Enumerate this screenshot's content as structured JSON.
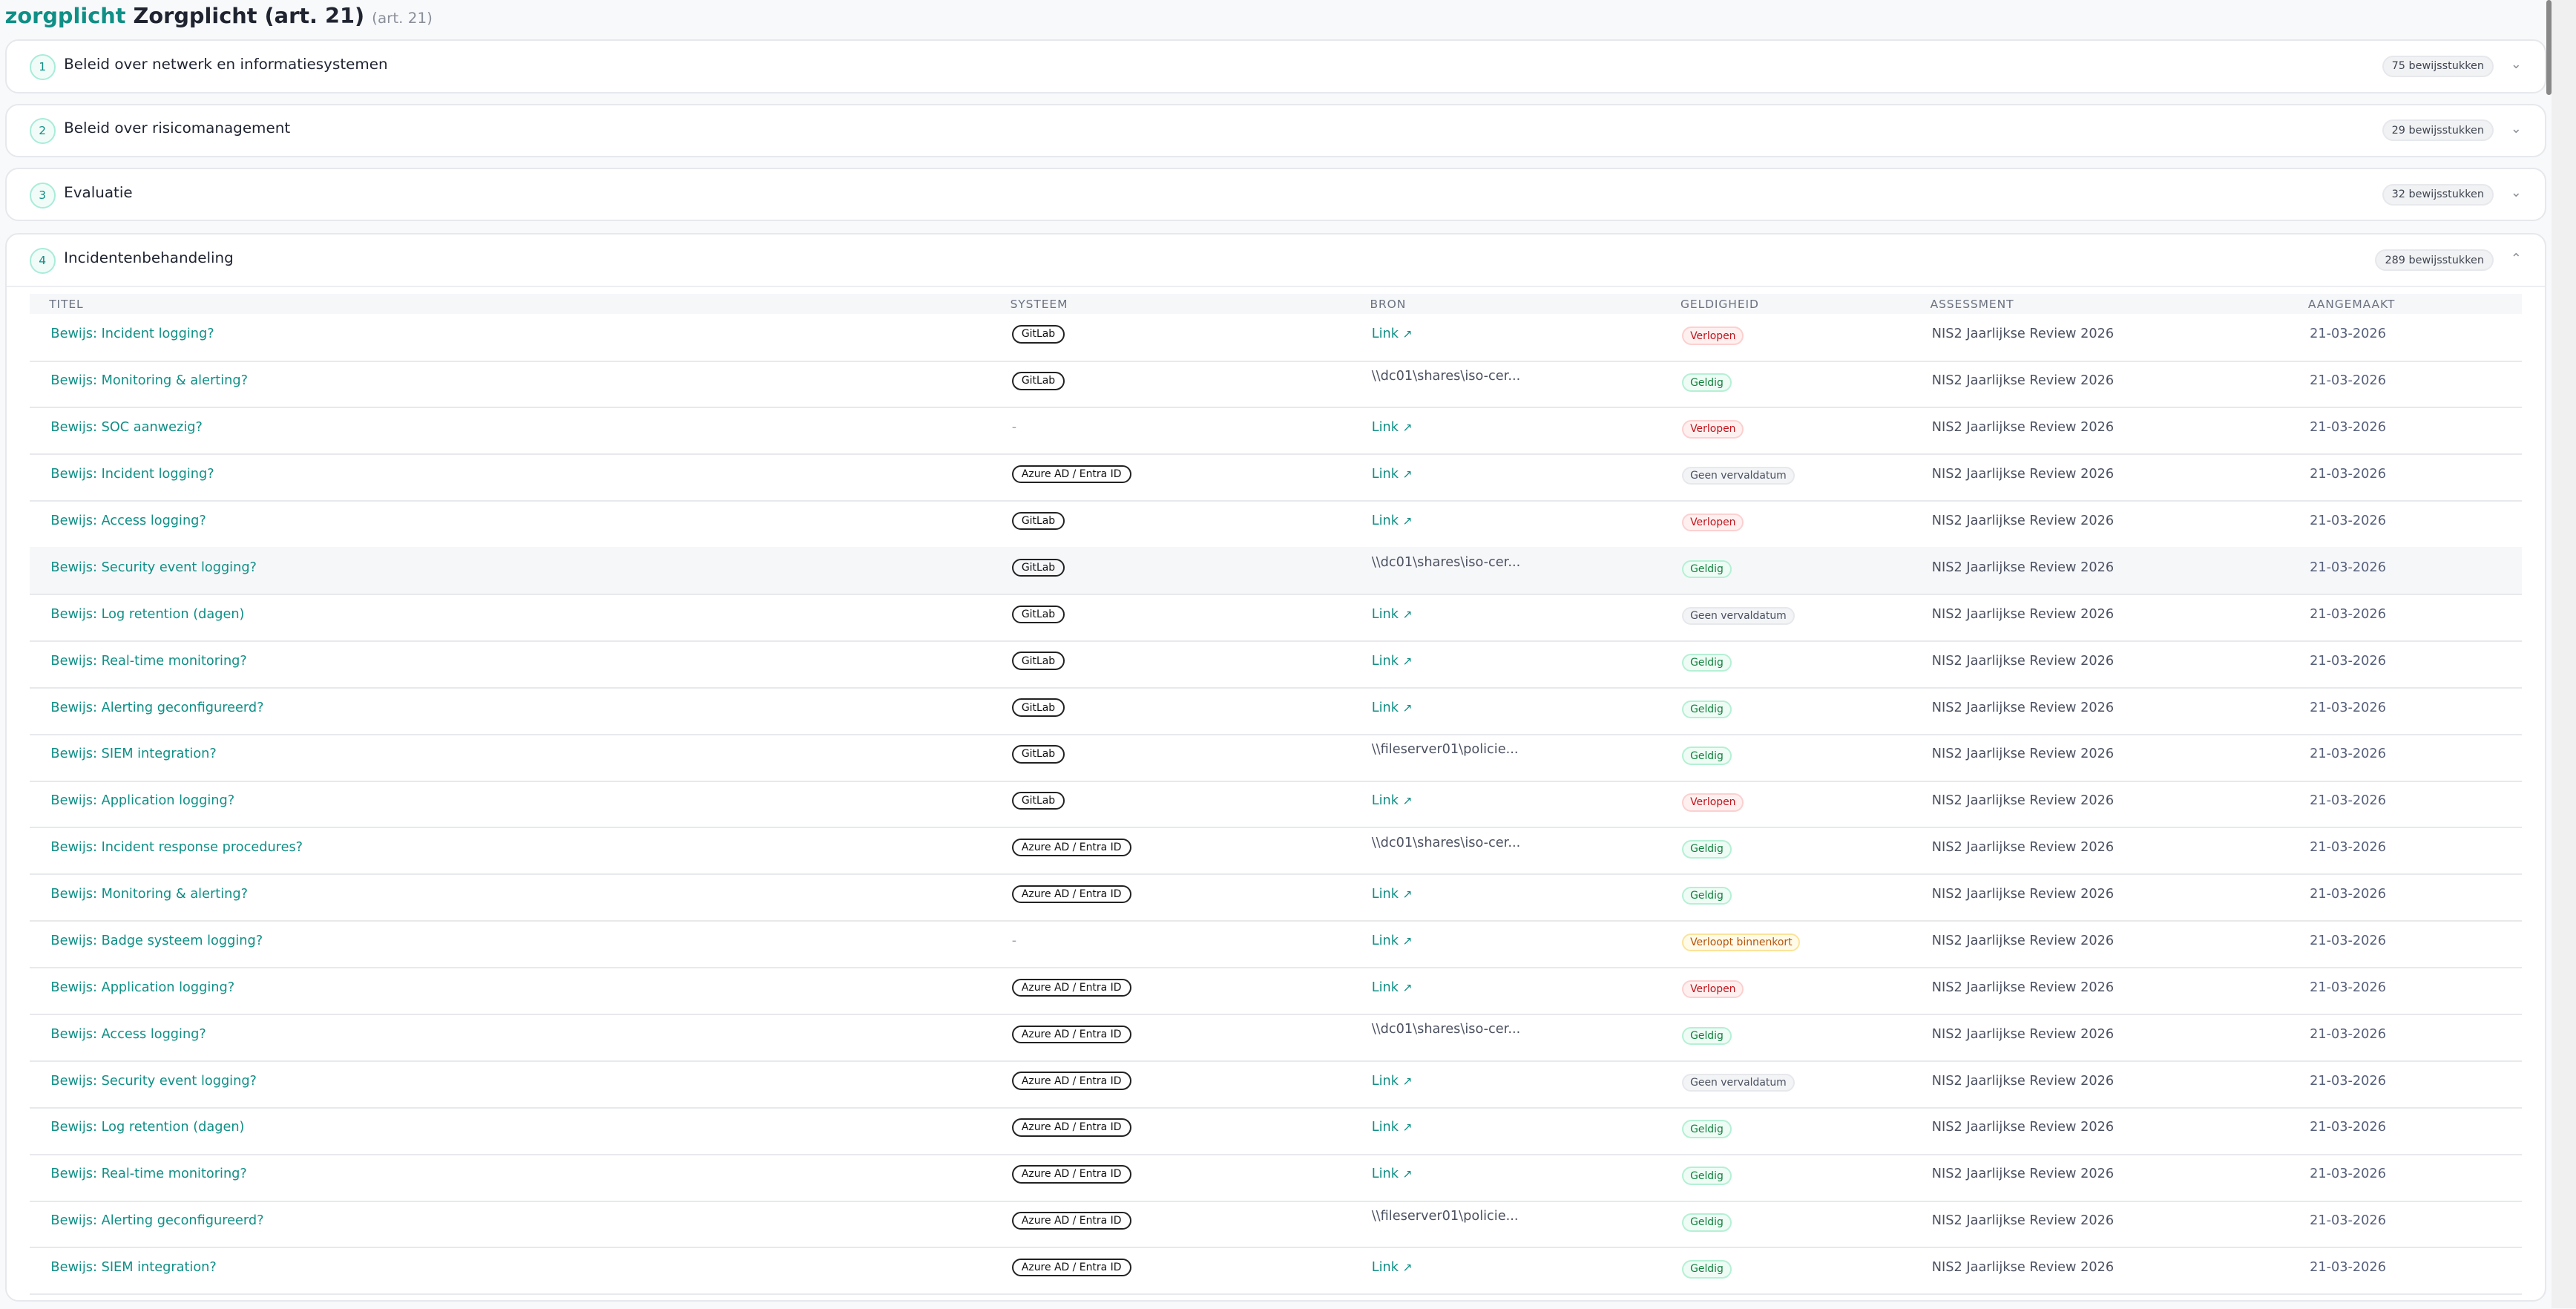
{
  "header": {
    "key": "zorgplicht",
    "title": "Zorgplicht (art. 21)",
    "sub": "(art. 21)"
  },
  "sections": [
    {
      "num": "1",
      "title": "Beleid over netwerk en informatiesystemen",
      "count": "75 bewijsstukken",
      "expanded": false
    },
    {
      "num": "2",
      "title": "Beleid over risicomanagement",
      "count": "29 bewijsstukken",
      "expanded": false
    },
    {
      "num": "3",
      "title": "Evaluatie",
      "count": "32 bewijsstukken",
      "expanded": false
    },
    {
      "num": "4",
      "title": "Incidentenbehandeling",
      "count": "289 bewijsstukken",
      "expanded": true
    }
  ],
  "columns": [
    "TITEL",
    "SYSTEEM",
    "BRON",
    "GELDIGHEID",
    "ASSESSMENT",
    "AANGEMAAKT"
  ],
  "rows": [
    {
      "title": "Bewijs: Incident logging?",
      "system": "GitLab",
      "source": "Link",
      "status": "Verlopen",
      "assessment": "NIS2 Jaarlijkse Review 2026",
      "created": "21-03-2026"
    },
    {
      "title": "Bewijs: Monitoring & alerting?",
      "system": "GitLab",
      "source": "\\\\dc01\\shares\\iso-cer...",
      "status": "Geldig",
      "assessment": "NIS2 Jaarlijkse Review 2026",
      "created": "21-03-2026"
    },
    {
      "title": "Bewijs: SOC aanwezig?",
      "system": "-",
      "source": "Link",
      "status": "Verlopen",
      "assessment": "NIS2 Jaarlijkse Review 2026",
      "created": "21-03-2026"
    },
    {
      "title": "Bewijs: Incident logging?",
      "system": "Azure AD / Entra ID",
      "source": "Link",
      "status": "Geen vervaldatum",
      "assessment": "NIS2 Jaarlijkse Review 2026",
      "created": "21-03-2026"
    },
    {
      "title": "Bewijs: Access logging?",
      "system": "GitLab",
      "source": "Link",
      "status": "Verlopen",
      "assessment": "NIS2 Jaarlijkse Review 2026",
      "created": "21-03-2026"
    },
    {
      "title": "Bewijs: Security event logging?",
      "system": "GitLab",
      "source": "\\\\dc01\\shares\\iso-cer...",
      "status": "Geldig",
      "assessment": "NIS2 Jaarlijkse Review 2026",
      "created": "21-03-2026"
    },
    {
      "title": "Bewijs: Log retention (dagen)",
      "system": "GitLab",
      "source": "Link",
      "status": "Geen vervaldatum",
      "assessment": "NIS2 Jaarlijkse Review 2026",
      "created": "21-03-2026"
    },
    {
      "title": "Bewijs: Real-time monitoring?",
      "system": "GitLab",
      "source": "Link",
      "status": "Geldig",
      "assessment": "NIS2 Jaarlijkse Review 2026",
      "created": "21-03-2026"
    },
    {
      "title": "Bewijs: Alerting geconfigureerd?",
      "system": "GitLab",
      "source": "Link",
      "status": "Geldig",
      "assessment": "NIS2 Jaarlijkse Review 2026",
      "created": "21-03-2026"
    },
    {
      "title": "Bewijs: SIEM integration?",
      "system": "GitLab",
      "source": "\\\\fileserver01\\policie...",
      "status": "Geldig",
      "assessment": "NIS2 Jaarlijkse Review 2026",
      "created": "21-03-2026"
    },
    {
      "title": "Bewijs: Application logging?",
      "system": "GitLab",
      "source": "Link",
      "status": "Verlopen",
      "assessment": "NIS2 Jaarlijkse Review 2026",
      "created": "21-03-2026"
    },
    {
      "title": "Bewijs: Incident response procedures?",
      "system": "Azure AD / Entra ID",
      "source": "\\\\dc01\\shares\\iso-cer...",
      "status": "Geldig",
      "assessment": "NIS2 Jaarlijkse Review 2026",
      "created": "21-03-2026"
    },
    {
      "title": "Bewijs: Monitoring & alerting?",
      "system": "Azure AD / Entra ID",
      "source": "Link",
      "status": "Geldig",
      "assessment": "NIS2 Jaarlijkse Review 2026",
      "created": "21-03-2026"
    },
    {
      "title": "Bewijs: Badge systeem logging?",
      "system": "-",
      "source": "Link",
      "status": "Verloopt binnenkort",
      "assessment": "NIS2 Jaarlijkse Review 2026",
      "created": "21-03-2026"
    },
    {
      "title": "Bewijs: Application logging?",
      "system": "Azure AD / Entra ID",
      "source": "Link",
      "status": "Verlopen",
      "assessment": "NIS2 Jaarlijkse Review 2026",
      "created": "21-03-2026"
    },
    {
      "title": "Bewijs: Access logging?",
      "system": "Azure AD / Entra ID",
      "source": "\\\\dc01\\shares\\iso-cer...",
      "status": "Geldig",
      "assessment": "NIS2 Jaarlijkse Review 2026",
      "created": "21-03-2026"
    },
    {
      "title": "Bewijs: Security event logging?",
      "system": "Azure AD / Entra ID",
      "source": "Link",
      "status": "Geen vervaldatum",
      "assessment": "NIS2 Jaarlijkse Review 2026",
      "created": "21-03-2026"
    },
    {
      "title": "Bewijs: Log retention (dagen)",
      "system": "Azure AD / Entra ID",
      "source": "Link",
      "status": "Geldig",
      "assessment": "NIS2 Jaarlijkse Review 2026",
      "created": "21-03-2026"
    },
    {
      "title": "Bewijs: Real-time monitoring?",
      "system": "Azure AD / Entra ID",
      "source": "Link",
      "status": "Geldig",
      "assessment": "NIS2 Jaarlijkse Review 2026",
      "created": "21-03-2026"
    },
    {
      "title": "Bewijs: Alerting geconfigureerd?",
      "system": "Azure AD / Entra ID",
      "source": "\\\\fileserver01\\policie...",
      "status": "Geldig",
      "assessment": "NIS2 Jaarlijkse Review 2026",
      "created": "21-03-2026"
    },
    {
      "title": "Bewijs: SIEM integration?",
      "system": "Azure AD / Entra ID",
      "source": "Link",
      "status": "Geldig",
      "assessment": "NIS2 Jaarlijkse Review 2026",
      "created": "21-03-2026"
    }
  ],
  "highlighted_row": 5,
  "icons": {
    "collapsed": "chevron-down-icon",
    "expanded": "chevron-up-icon",
    "link": "external-link-icon"
  }
}
